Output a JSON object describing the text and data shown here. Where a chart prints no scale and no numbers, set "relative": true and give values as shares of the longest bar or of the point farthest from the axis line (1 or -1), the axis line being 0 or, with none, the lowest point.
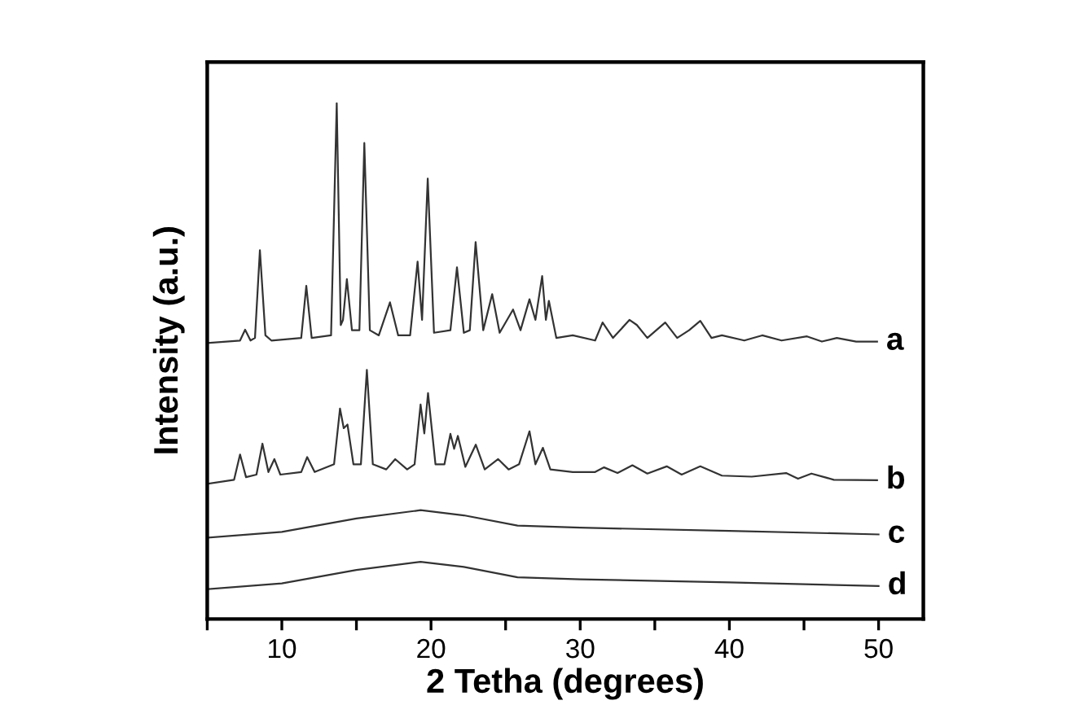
{
  "chart_data": {
    "type": "line",
    "relative": true,
    "xlabel": "2 Tetha (degrees)",
    "ylabel": "Intensity (a.u.)",
    "xlim": [
      5,
      53
    ],
    "xticks": [
      {
        "value": 5,
        "label": null
      },
      10,
      {
        "value": 15,
        "label": null
      },
      20,
      {
        "value": 25,
        "label": null
      },
      30,
      {
        "value": 35,
        "label": null
      },
      40,
      {
        "value": 45,
        "label": null
      },
      50
    ],
    "grid": false,
    "legend": false,
    "marker": "none",
    "line_style": "solid",
    "tick_labels": "x",
    "series": [
      {
        "name": "a",
        "color": "#333333",
        "x": [
          5,
          7.2,
          7.54,
          7.9,
          8.2,
          8.53,
          8.9,
          9.3,
          11.3,
          11.64,
          12.0,
          13.3,
          13.68,
          13.95,
          14.1,
          14.36,
          14.7,
          15.2,
          15.53,
          15.9,
          16.5,
          17.25,
          17.8,
          18.6,
          19.1,
          19.4,
          19.78,
          20.2,
          21.3,
          21.74,
          22.2,
          22.6,
          22.99,
          23.5,
          24.1,
          24.6,
          25.5,
          26.0,
          26.6,
          27.0,
          27.45,
          27.7,
          27.9,
          28.4,
          29.5,
          31.0,
          31.5,
          32.2,
          33.3,
          33.8,
          34.5,
          35.7,
          36.5,
          37.3,
          38.05,
          38.8,
          39.5,
          41.0,
          42.2,
          43.5,
          45.2,
          46.2,
          47.2,
          48.5,
          49.9
        ],
        "values": [
          0.535,
          0.54,
          0.561,
          0.54,
          0.545,
          0.715,
          0.55,
          0.54,
          0.545,
          0.646,
          0.545,
          0.55,
          1.0,
          0.57,
          0.58,
          0.659,
          0.56,
          0.56,
          0.923,
          0.56,
          0.55,
          0.614,
          0.55,
          0.55,
          0.693,
          0.58,
          0.854,
          0.555,
          0.56,
          0.682,
          0.555,
          0.56,
          0.731,
          0.56,
          0.63,
          0.555,
          0.6,
          0.56,
          0.62,
          0.58,
          0.665,
          0.58,
          0.617,
          0.545,
          0.55,
          0.54,
          0.575,
          0.545,
          0.58,
          0.57,
          0.545,
          0.575,
          0.545,
          0.56,
          0.578,
          0.545,
          0.55,
          0.54,
          0.55,
          0.54,
          0.548,
          0.538,
          0.545,
          0.538,
          0.538
        ]
      },
      {
        "name": "b",
        "color": "#333333",
        "x": [
          5,
          6.8,
          7.2,
          7.6,
          8.3,
          8.7,
          9.1,
          9.5,
          9.9,
          11.3,
          11.7,
          12.2,
          13.5,
          13.9,
          14.15,
          14.4,
          14.8,
          15.3,
          15.7,
          16.1,
          17.0,
          17.6,
          18.4,
          18.9,
          19.3,
          19.55,
          19.8,
          20.3,
          20.9,
          21.3,
          21.55,
          21.8,
          22.3,
          23.0,
          23.6,
          24.5,
          25.2,
          25.9,
          26.6,
          27.0,
          27.5,
          28.0,
          29.5,
          31.0,
          31.6,
          32.5,
          33.5,
          34.5,
          35.8,
          36.8,
          38.05,
          39.5,
          41.5,
          43.8,
          44.6,
          45.5,
          47.0,
          49.9
        ],
        "values": [
          0.262,
          0.27,
          0.319,
          0.275,
          0.28,
          0.34,
          0.285,
          0.31,
          0.28,
          0.285,
          0.314,
          0.285,
          0.3,
          0.408,
          0.37,
          0.377,
          0.3,
          0.3,
          0.483,
          0.3,
          0.29,
          0.31,
          0.29,
          0.3,
          0.416,
          0.36,
          0.438,
          0.3,
          0.3,
          0.359,
          0.33,
          0.355,
          0.295,
          0.338,
          0.29,
          0.31,
          0.29,
          0.3,
          0.364,
          0.3,
          0.332,
          0.29,
          0.285,
          0.285,
          0.294,
          0.283,
          0.298,
          0.282,
          0.296,
          0.28,
          0.296,
          0.278,
          0.276,
          0.283,
          0.272,
          0.282,
          0.27,
          0.269
        ]
      },
      {
        "name": "c",
        "color": "#333333",
        "x": [
          5.1,
          10,
          15,
          19.3,
          22.2,
          25.8,
          30,
          40,
          50
        ],
        "values": [
          0.158,
          0.169,
          0.195,
          0.211,
          0.201,
          0.181,
          0.177,
          0.171,
          0.164
        ]
      },
      {
        "name": "d",
        "color": "#333333",
        "x": [
          5.1,
          10,
          15,
          19.3,
          22.2,
          25.8,
          30,
          40,
          50
        ],
        "values": [
          0.058,
          0.069,
          0.095,
          0.111,
          0.101,
          0.081,
          0.077,
          0.071,
          0.064
        ]
      }
    ]
  }
}
